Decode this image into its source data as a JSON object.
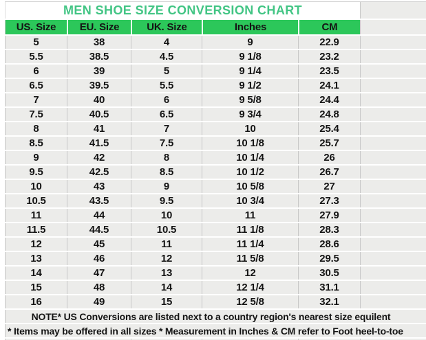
{
  "chart_data": {
    "type": "table",
    "title": "MEN SHOE SIZE CONVERSION CHART",
    "columns": [
      "US. Size",
      "EU. Size",
      "UK. Size",
      "Inches",
      "CM"
    ],
    "rows": [
      [
        "5",
        "38",
        "4",
        "9",
        "22.9"
      ],
      [
        "5.5",
        "38.5",
        "4.5",
        "9 1/8",
        "23.2"
      ],
      [
        "6",
        "39",
        "5",
        "9 1/4",
        "23.5"
      ],
      [
        "6.5",
        "39.5",
        "5.5",
        "9 1/2",
        "24.1"
      ],
      [
        "7",
        "40",
        "6",
        "9 5/8",
        "24.4"
      ],
      [
        "7.5",
        "40.5",
        "6.5",
        "9 3/4",
        "24.8"
      ],
      [
        "8",
        "41",
        "7",
        "10",
        "25.4"
      ],
      [
        "8.5",
        "41.5",
        "7.5",
        "10 1/8",
        "25.7"
      ],
      [
        "9",
        "42",
        "8",
        "10 1/4",
        "26"
      ],
      [
        "9.5",
        "42.5",
        "8.5",
        "10 1/2",
        "26.7"
      ],
      [
        "10",
        "43",
        "9",
        "10 5/8",
        "27"
      ],
      [
        "10.5",
        "43.5",
        "9.5",
        "10 3/4",
        "27.3"
      ],
      [
        "11",
        "44",
        "10",
        "11",
        "27.9"
      ],
      [
        "11.5",
        "44.5",
        "10.5",
        "11 1/8",
        "28.3"
      ],
      [
        "12",
        "45",
        "11",
        "11 1/4",
        "28.6"
      ],
      [
        "13",
        "46",
        "12",
        "11 5/8",
        "29.5"
      ],
      [
        "14",
        "47",
        "13",
        "12",
        "30.5"
      ],
      [
        "15",
        "48",
        "14",
        "12 1/4",
        "31.1"
      ],
      [
        "16",
        "49",
        "15",
        "12 5/8",
        "32.1"
      ]
    ],
    "notes": [
      "NOTE* US Conversions are listed next to a country region's nearest size equilent",
      "* Items may be offered in all sizes * Measurement in Inches & CM refer to Foot heel-to-toe"
    ]
  },
  "colors": {
    "header_bg": "#2cc75a",
    "title_text": "#42c584",
    "cell_bg": "#ececea",
    "grid_line": "#c6c6c6",
    "text": "#141414"
  }
}
